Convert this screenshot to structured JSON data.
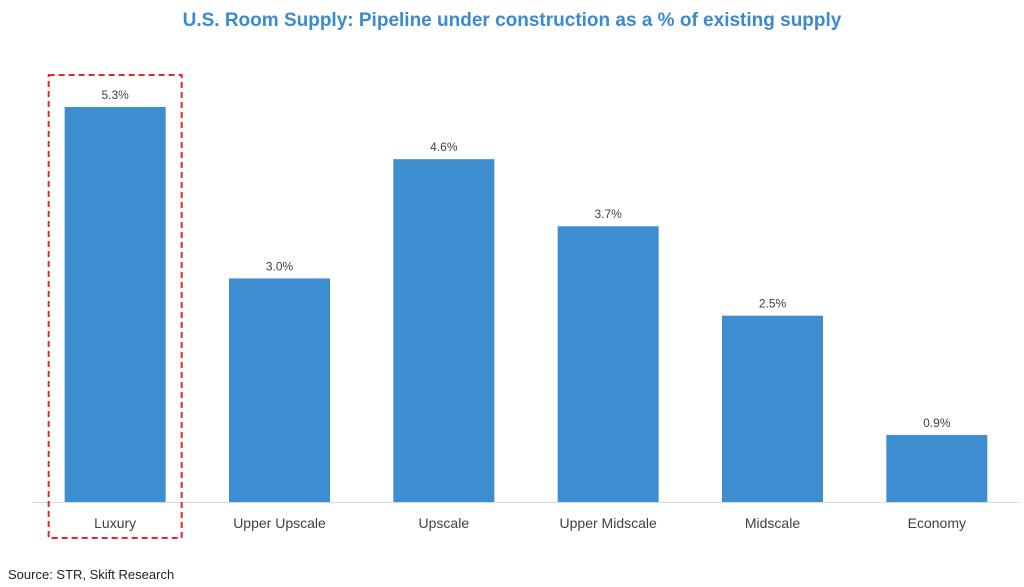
{
  "chart_data": {
    "type": "bar",
    "title": "U.S. Room Supply: Pipeline under construction as a % of existing supply",
    "xlabel": "",
    "ylabel": "",
    "categories": [
      "Luxury",
      "Upper Upscale",
      "Upscale",
      "Upper Midscale",
      "Midscale",
      "Economy"
    ],
    "values": [
      5.3,
      3.0,
      4.6,
      3.7,
      2.5,
      0.9
    ],
    "data_labels": [
      "5.3%",
      "3.0%",
      "4.6%",
      "3.7%",
      "2.5%",
      "0.9%"
    ],
    "ylim": [
      0,
      5.3
    ],
    "grid": false,
    "legend": "none",
    "highlighted_category": "Luxury",
    "colors": {
      "bar": "#3d8dd0",
      "title": "#3b8ad0",
      "highlight_box": "#e8262a",
      "axis": "#d9d9d9",
      "label": "#404040"
    }
  },
  "source": "Source: STR, Skift Research"
}
